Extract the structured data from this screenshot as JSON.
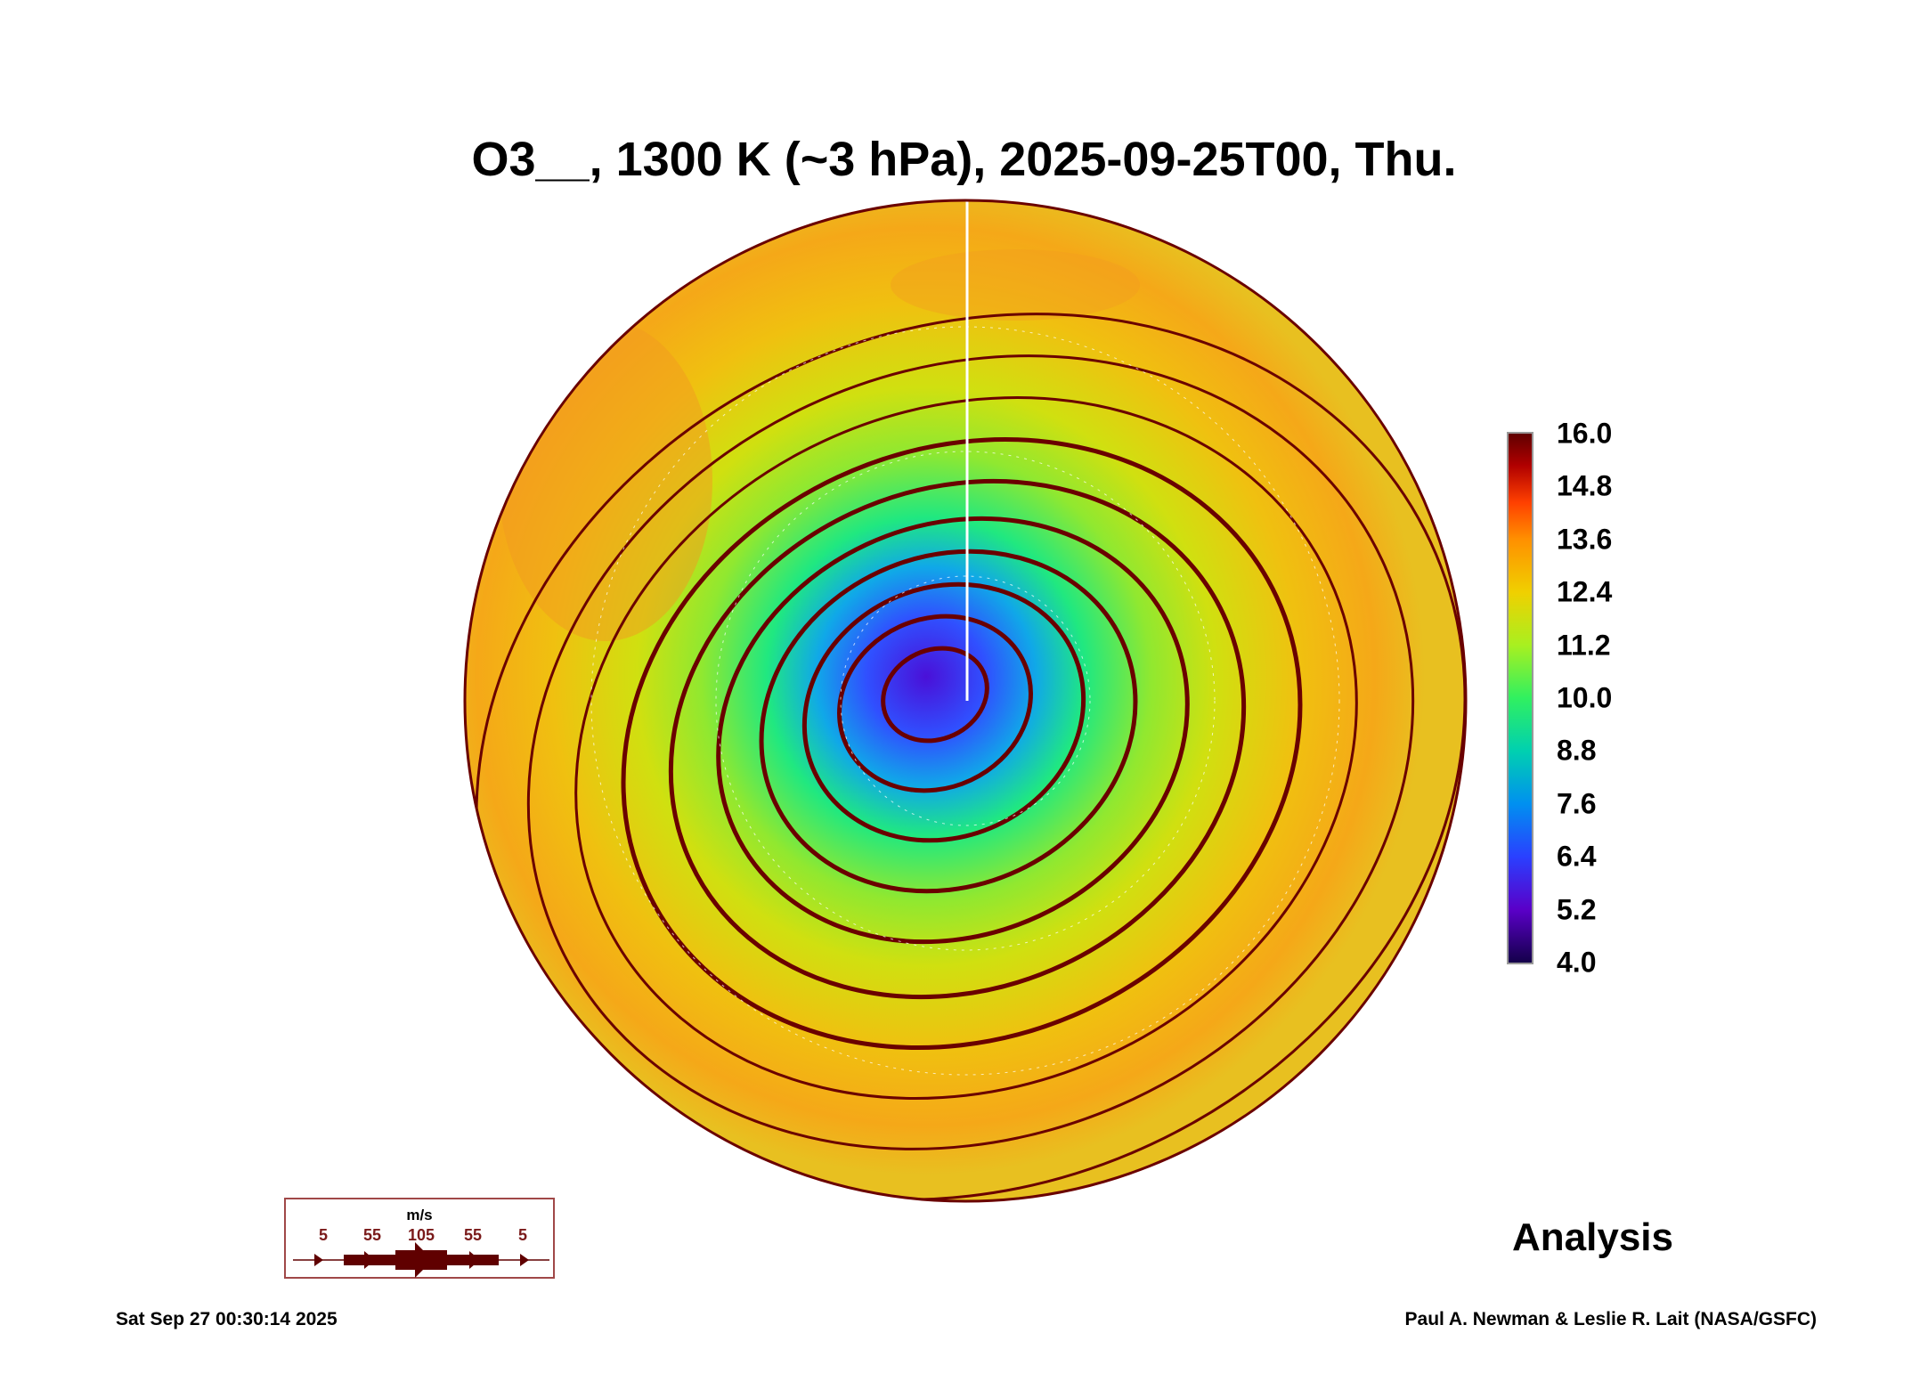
{
  "title": "O3__, 1300 K (~3 hPa), 2025-09-25T00, Thu.",
  "label_analysis": "Analysis",
  "timestamp": "Sat Sep 27 00:30:14 2025",
  "credit": "Paul A. Newman & Leslie R. Lait (NASA/GSFC)",
  "wind_legend": {
    "unit": "m/s",
    "labels": [
      "5",
      "55",
      "105",
      "55",
      "5"
    ]
  },
  "colors": {
    "streamline": "#6a0000",
    "coast": "#ffffff"
  },
  "chart_data": {
    "type": "heatmap",
    "projection": "north polar stereographic",
    "title": "O3__, 1300 K (~3 hPa), 2025-09-25T00, Thu.",
    "colorbar": {
      "range": [
        4.0,
        16.0
      ],
      "ticks": [
        "4.0",
        "5.2",
        "6.4",
        "7.6",
        "8.8",
        "10.0",
        "11.2",
        "12.4",
        "13.6",
        "14.8",
        "16.0"
      ]
    },
    "field_summary": {
      "minimum_near_pole": 4.5,
      "background": 11.5,
      "maxima_midlatitudes": 13.0
    },
    "overlay": "wind streamlines"
  }
}
